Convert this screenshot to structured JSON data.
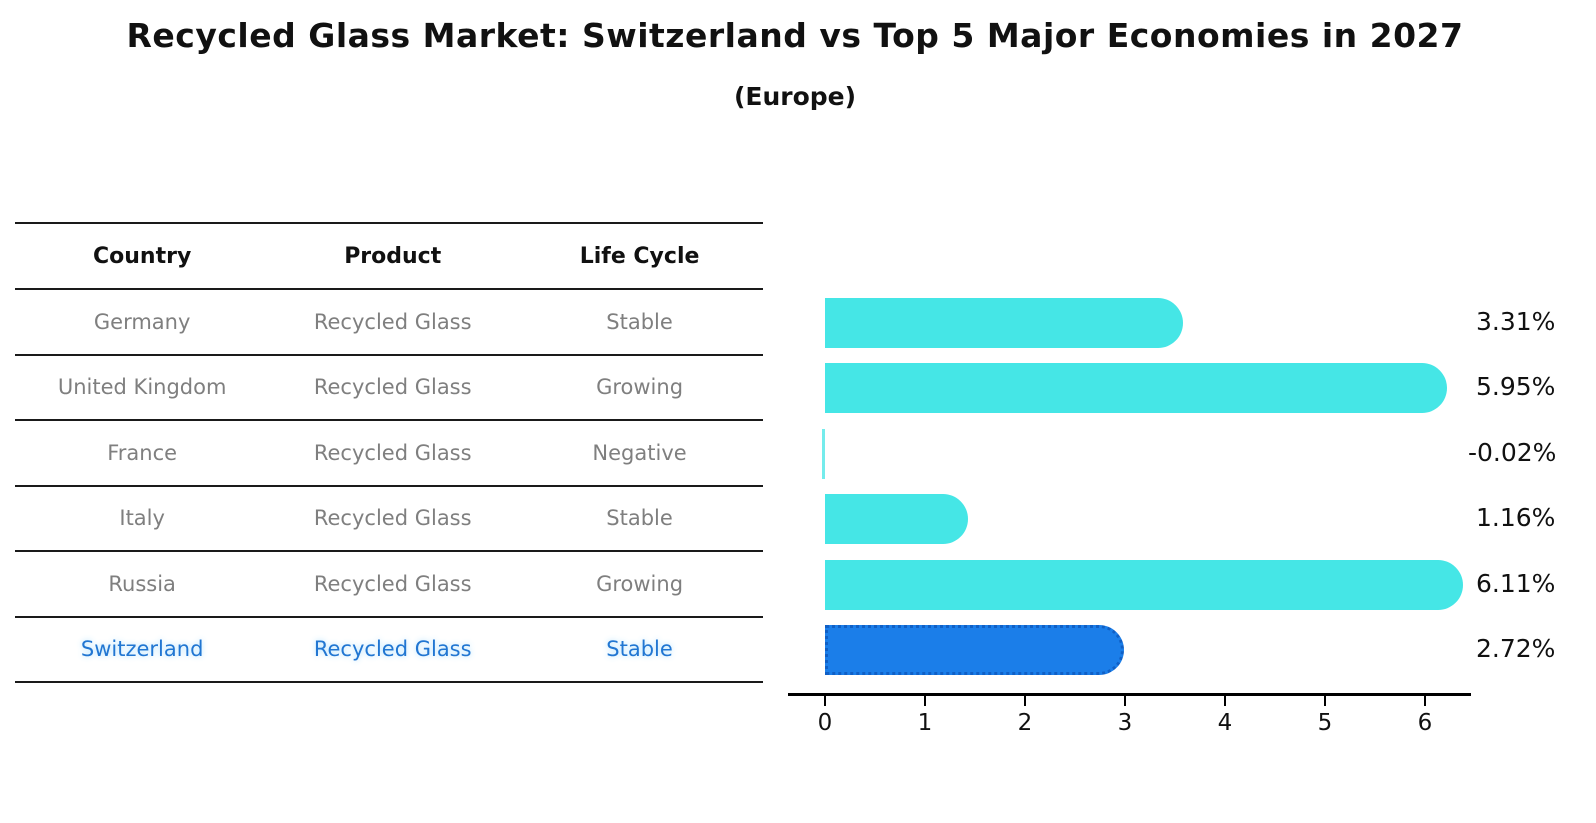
{
  "title": "Recycled Glass Market: Switzerland vs Top 5 Major Economies in 2027",
  "subtitle": "(Europe)",
  "table": {
    "headers": [
      "Country",
      "Product",
      "Life Cycle"
    ],
    "rows": [
      {
        "country": "Germany",
        "product": "Recycled Glass",
        "life_cycle": "Stable",
        "highlighted": false
      },
      {
        "country": "United Kingdom",
        "product": "Recycled Glass",
        "life_cycle": "Growing",
        "highlighted": false
      },
      {
        "country": "France",
        "product": "Recycled Glass",
        "life_cycle": "Negative",
        "highlighted": false
      },
      {
        "country": "Italy",
        "product": "Recycled Glass",
        "life_cycle": "Stable",
        "highlighted": false
      },
      {
        "country": "Russia",
        "product": "Recycled Glass",
        "life_cycle": "Growing",
        "highlighted": false
      },
      {
        "country": "Switzerland",
        "product": "Recycled Glass",
        "life_cycle": "Stable",
        "highlighted": true
      }
    ]
  },
  "chart_data": {
    "type": "bar",
    "orientation": "horizontal",
    "title": "Recycled Glass Market: Switzerland vs Top 5 Major Economies in 2027 (Europe)",
    "categories": [
      "Germany",
      "United Kingdom",
      "France",
      "Italy",
      "Russia",
      "Switzerland"
    ],
    "values": [
      3.31,
      5.95,
      -0.02,
      1.16,
      6.11,
      2.72
    ],
    "value_labels": [
      "3.31%",
      "5.95%",
      "-0.02%",
      "1.16%",
      "6.11%",
      "2.72%"
    ],
    "x_ticks": [
      "0",
      "1",
      "2",
      "3",
      "4",
      "5",
      "6"
    ],
    "xlim": [
      -0.37,
      6.45
    ],
    "grid": false,
    "legend": false,
    "highlight_category": "Switzerland"
  },
  "colors": {
    "default_bar": "#45e6e6",
    "highlight_bar": "#1b7ee9",
    "highlight_bar_border": "#1060c6",
    "highlight_text": "#2176d2",
    "row_text": "#7f7f7f",
    "header_text": "#111111",
    "axis": "#000000"
  }
}
